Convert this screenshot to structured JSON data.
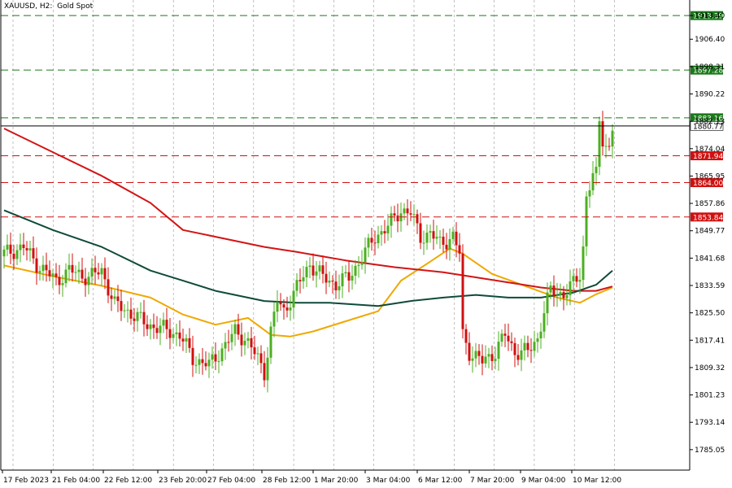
{
  "chart_data": {
    "type": "candlestick",
    "title": "XAUUSD, H2:  Gold Spot",
    "ylim": [
      1779.0,
      1918.0
    ],
    "y_ticks": [
      "1913.40",
      "1906.40",
      "1898.31",
      "1890.22",
      "1882.13",
      "1874.04",
      "1865.95",
      "1857.86",
      "1849.77",
      "1841.68",
      "1833.59",
      "1825.50",
      "1817.41",
      "1809.32",
      "1801.23",
      "1793.14",
      "1785.05"
    ],
    "x_ticks": [
      "17 Feb 2023",
      "21 Feb 04:00",
      "22 Feb 12:00",
      "23 Feb 20:00",
      "27 Feb 04:00",
      "28 Feb 12:00",
      "1 Mar 20:00",
      "3 Mar 04:00",
      "6 Mar 12:00",
      "7 Mar 20:00",
      "9 Mar 04:00",
      "10 Mar 12:00"
    ],
    "price_levels": [
      {
        "label": "1913.39",
        "color": "#1a7a1a"
      },
      {
        "label": "1897.28",
        "color": "#1a7a1a"
      },
      {
        "label": "1883.16",
        "color": "#1a7a1a"
      },
      {
        "label": "1871.94",
        "color": "#d01010"
      },
      {
        "label": "1864.00",
        "color": "#d01010"
      },
      {
        "label": "1853.84",
        "color": "#d01010"
      }
    ],
    "current_price": {
      "label": "1880.77",
      "color": "#000000"
    },
    "candle_colors": {
      "up": "#4caf22",
      "down": "#d01010"
    },
    "anchors": [
      {
        "t": 0,
        "c": 1843
      },
      {
        "t": 6,
        "c": 1845
      },
      {
        "t": 10,
        "c": 1840
      },
      {
        "t": 16,
        "c": 1835
      },
      {
        "t": 20,
        "c": 1838
      },
      {
        "t": 26,
        "c": 1836
      },
      {
        "t": 30,
        "c": 1838
      },
      {
        "t": 34,
        "c": 1828
      },
      {
        "t": 38,
        "c": 1826
      },
      {
        "t": 44,
        "c": 1822
      },
      {
        "t": 48,
        "c": 1821
      },
      {
        "t": 54,
        "c": 1819
      },
      {
        "t": 58,
        "c": 1812
      },
      {
        "t": 63,
        "c": 1810
      },
      {
        "t": 68,
        "c": 1816
      },
      {
        "t": 71,
        "c": 1820
      },
      {
        "t": 74,
        "c": 1818
      },
      {
        "t": 78,
        "c": 1812
      },
      {
        "t": 80,
        "c": 1808
      },
      {
        "t": 82,
        "c": 1820
      },
      {
        "t": 84,
        "c": 1829
      },
      {
        "t": 86,
        "c": 1826
      },
      {
        "t": 90,
        "c": 1833
      },
      {
        "t": 94,
        "c": 1840
      },
      {
        "t": 98,
        "c": 1836
      },
      {
        "t": 102,
        "c": 1834
      },
      {
        "t": 106,
        "c": 1836
      },
      {
        "t": 110,
        "c": 1842
      },
      {
        "t": 114,
        "c": 1848
      },
      {
        "t": 118,
        "c": 1851
      },
      {
        "t": 122,
        "c": 1856
      },
      {
        "t": 125,
        "c": 1855
      },
      {
        "t": 128,
        "c": 1848
      },
      {
        "t": 131,
        "c": 1849
      },
      {
        "t": 134,
        "c": 1846
      },
      {
        "t": 138,
        "c": 1848
      },
      {
        "t": 140,
        "c": 1843
      },
      {
        "t": 141,
        "c": 1819
      },
      {
        "t": 143,
        "c": 1814
      },
      {
        "t": 147,
        "c": 1811
      },
      {
        "t": 151,
        "c": 1814
      },
      {
        "t": 154,
        "c": 1819
      },
      {
        "t": 157,
        "c": 1814
      },
      {
        "t": 161,
        "c": 1814
      },
      {
        "t": 164,
        "c": 1818
      },
      {
        "t": 166,
        "c": 1826
      },
      {
        "t": 168,
        "c": 1832
      },
      {
        "t": 172,
        "c": 1831
      },
      {
        "t": 175,
        "c": 1834
      },
      {
        "t": 177,
        "c": 1837
      },
      {
        "t": 178,
        "c": 1845
      },
      {
        "t": 179,
        "c": 1860
      },
      {
        "t": 181,
        "c": 1866
      },
      {
        "t": 182,
        "c": 1866
      },
      {
        "t": 183,
        "c": 1882
      },
      {
        "t": 184,
        "c": 1877
      },
      {
        "t": 186,
        "c": 1874
      },
      {
        "t": 187,
        "c": 1880
      }
    ],
    "moving_averages": [
      {
        "color": "#f0a800",
        "points": [
          [
            0,
            1839.5
          ],
          [
            15,
            1836.3
          ],
          [
            30,
            1833.5
          ],
          [
            45,
            1830
          ],
          [
            55,
            1825
          ],
          [
            65,
            1822
          ],
          [
            75,
            1824
          ],
          [
            82,
            1819
          ],
          [
            88,
            1818.5
          ],
          [
            95,
            1820
          ],
          [
            105,
            1823
          ],
          [
            115,
            1826
          ],
          [
            122,
            1835
          ],
          [
            130,
            1840
          ],
          [
            137,
            1844.5
          ],
          [
            141,
            1843
          ],
          [
            150,
            1837
          ],
          [
            160,
            1833.5
          ],
          [
            170,
            1830
          ],
          [
            177,
            1828.5
          ],
          [
            182,
            1831
          ],
          [
            187,
            1833
          ]
        ]
      },
      {
        "color": "#d21515",
        "points": [
          [
            0,
            1880
          ],
          [
            15,
            1873
          ],
          [
            30,
            1866
          ],
          [
            45,
            1858
          ],
          [
            55,
            1850
          ],
          [
            65,
            1848
          ],
          [
            80,
            1845
          ],
          [
            90,
            1843.5
          ],
          [
            105,
            1841
          ],
          [
            120,
            1839
          ],
          [
            135,
            1837.5
          ],
          [
            145,
            1836
          ],
          [
            155,
            1834.5
          ],
          [
            165,
            1833
          ],
          [
            175,
            1832
          ],
          [
            182,
            1832
          ],
          [
            187,
            1833.3
          ]
        ]
      },
      {
        "color": "#0f4a3a",
        "points": [
          [
            0,
            1855.8
          ],
          [
            15,
            1850
          ],
          [
            30,
            1845
          ],
          [
            45,
            1838
          ],
          [
            55,
            1835
          ],
          [
            65,
            1832
          ],
          [
            80,
            1829
          ],
          [
            90,
            1828.5
          ],
          [
            100,
            1828.5
          ],
          [
            115,
            1827.5
          ],
          [
            125,
            1829
          ],
          [
            135,
            1830
          ],
          [
            145,
            1830.8
          ],
          [
            155,
            1830
          ],
          [
            165,
            1830
          ],
          [
            175,
            1831.5
          ],
          [
            182,
            1833.8
          ],
          [
            187,
            1838
          ]
        ]
      }
    ]
  }
}
